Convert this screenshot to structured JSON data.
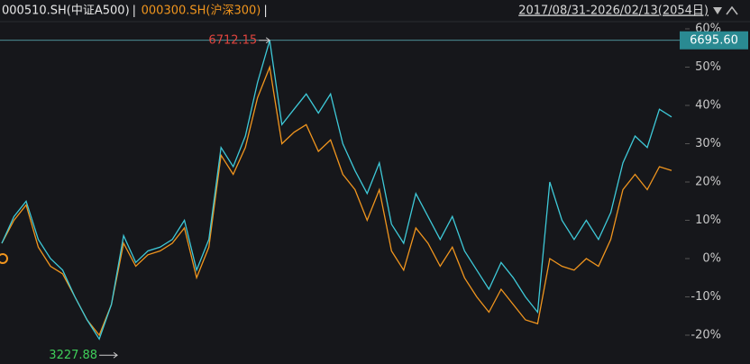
{
  "chart_data": {
    "type": "line",
    "date_range": "2017/08/31-2026/02/13(2054日)",
    "series": [
      {
        "name": "000510.SH(中证A500)",
        "color": "#3ec9d8",
        "values": [
          4,
          11,
          15,
          5,
          0,
          -3,
          -10,
          -16,
          -21,
          -12,
          6,
          -1,
          2,
          3,
          5,
          10,
          -3,
          5,
          29,
          24,
          32,
          46,
          57,
          35,
          39,
          43,
          38,
          43,
          30,
          23,
          17,
          25,
          9,
          4,
          17,
          11,
          5,
          11,
          2,
          -3,
          -8,
          -1,
          -5,
          -10,
          -14,
          20,
          10,
          5,
          10,
          5,
          12,
          25,
          32,
          29,
          39,
          37
        ]
      },
      {
        "name": "000300.SH(沪深300)",
        "color": "#f0951e",
        "values": [
          4,
          10,
          14,
          3,
          -2,
          -4,
          -10,
          -16,
          -20,
          -12,
          4,
          -2,
          1,
          2,
          4,
          8,
          -5,
          3,
          27,
          22,
          29,
          42,
          50,
          30,
          33,
          35,
          28,
          31,
          22,
          18,
          10,
          18,
          2,
          -3,
          8,
          4,
          -2,
          3,
          -5,
          -10,
          -14,
          -8,
          -12,
          -16,
          -17,
          0,
          -2,
          -3,
          0,
          -2,
          5,
          18,
          22,
          18,
          24,
          23
        ]
      }
    ],
    "ylim": [
      -20,
      60
    ],
    "yticks": [
      {
        "value": 60,
        "label": "60%"
      },
      {
        "value": 50,
        "label": "50%"
      },
      {
        "value": 40,
        "label": "40%"
      },
      {
        "value": 30,
        "label": "30%"
      },
      {
        "value": 20,
        "label": "20%"
      },
      {
        "value": 10,
        "label": "10%"
      },
      {
        "value": 0,
        "label": "0%"
      },
      {
        "value": -10,
        "label": "-10%"
      },
      {
        "value": -20,
        "label": "-20%"
      }
    ],
    "max_label": "6712.15",
    "min_label": "3227.88",
    "last_label": "6695.60"
  }
}
